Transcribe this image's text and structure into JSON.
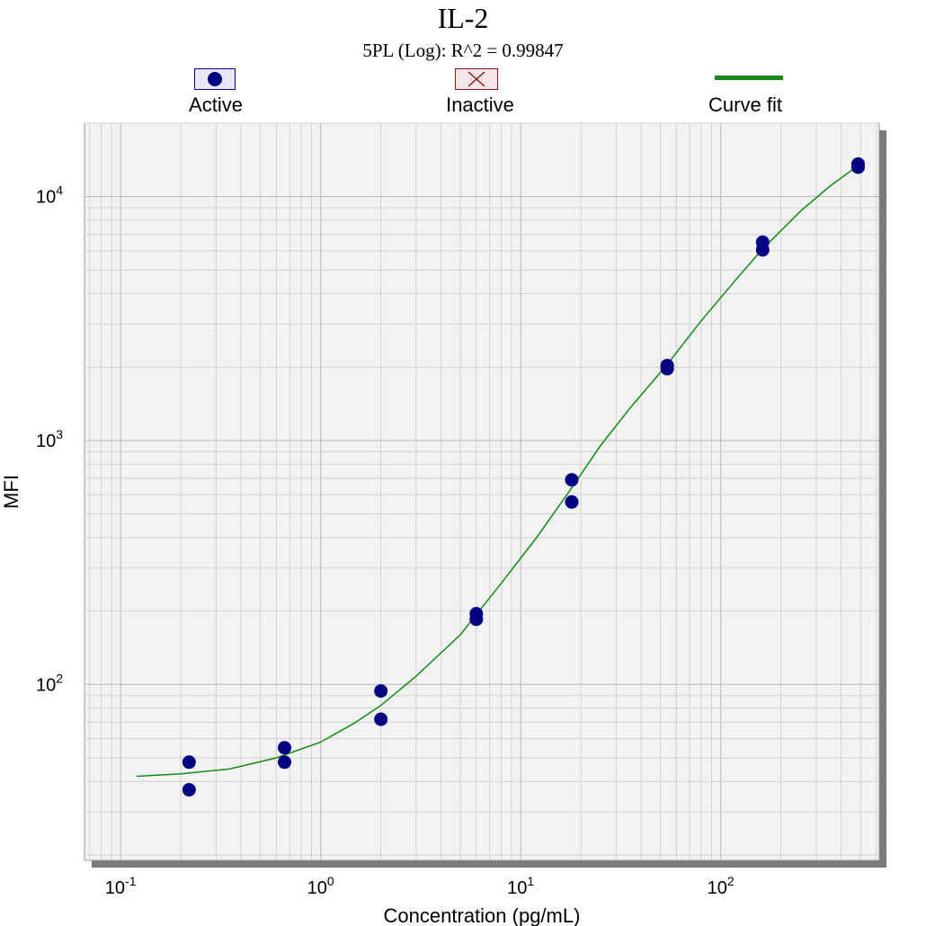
{
  "chart_data": {
    "type": "scatter",
    "title": "IL-2",
    "subtitle": "5PL (Log): R^2 = 0.99847",
    "xlabel": "Concentration (pg/mL)",
    "ylabel": "MFI",
    "x_scale": "log",
    "y_scale": "log",
    "xlim": [
      0.066,
      620
    ],
    "ylim": [
      19,
      20000
    ],
    "grid": true,
    "x_ticks": [
      {
        "value": 0.1,
        "label": "10",
        "exp": "-1"
      },
      {
        "value": 1,
        "label": "10",
        "exp": "0"
      },
      {
        "value": 10,
        "label": "10",
        "exp": "1"
      },
      {
        "value": 100,
        "label": "10",
        "exp": "2"
      }
    ],
    "y_ticks": [
      {
        "value": 100,
        "label": "10",
        "exp": "2"
      },
      {
        "value": 1000,
        "label": "10",
        "exp": "3"
      },
      {
        "value": 10000,
        "label": "10",
        "exp": "4"
      }
    ],
    "legend": {
      "placement": "top",
      "items": [
        {
          "name": "Active",
          "symbol": "filled-circle",
          "color": "#000080"
        },
        {
          "name": "Inactive",
          "symbol": "x-box",
          "color": "#8b1a1a"
        },
        {
          "name": "Curve fit",
          "symbol": "line",
          "color": "#138a13"
        }
      ]
    },
    "series": [
      {
        "name": "Active",
        "color": "#000080",
        "points": [
          {
            "x": 0.22,
            "y": 48
          },
          {
            "x": 0.22,
            "y": 37
          },
          {
            "x": 0.66,
            "y": 55
          },
          {
            "x": 0.66,
            "y": 48
          },
          {
            "x": 2.0,
            "y": 94
          },
          {
            "x": 2.0,
            "y": 72
          },
          {
            "x": 6.0,
            "y": 195
          },
          {
            "x": 6.0,
            "y": 185
          },
          {
            "x": 18.0,
            "y": 690
          },
          {
            "x": 18.0,
            "y": 560
          },
          {
            "x": 54.0,
            "y": 2030
          },
          {
            "x": 54.0,
            "y": 1970
          },
          {
            "x": 162.0,
            "y": 6500
          },
          {
            "x": 162.0,
            "y": 6050
          },
          {
            "x": 486.0,
            "y": 13600
          },
          {
            "x": 486.0,
            "y": 13200
          }
        ]
      },
      {
        "name": "Curve fit",
        "color": "#138a13",
        "points": [
          {
            "x": 0.12,
            "y": 42
          },
          {
            "x": 0.2,
            "y": 43
          },
          {
            "x": 0.35,
            "y": 45
          },
          {
            "x": 0.6,
            "y": 50
          },
          {
            "x": 1.0,
            "y": 58
          },
          {
            "x": 1.5,
            "y": 70
          },
          {
            "x": 2.0,
            "y": 82
          },
          {
            "x": 3.0,
            "y": 108
          },
          {
            "x": 5.0,
            "y": 160
          },
          {
            "x": 8.0,
            "y": 260
          },
          {
            "x": 12.0,
            "y": 400
          },
          {
            "x": 18.0,
            "y": 640
          },
          {
            "x": 25.0,
            "y": 950
          },
          {
            "x": 35.0,
            "y": 1350
          },
          {
            "x": 54.0,
            "y": 2050
          },
          {
            "x": 80.0,
            "y": 3100
          },
          {
            "x": 120.0,
            "y": 4600
          },
          {
            "x": 162.0,
            "y": 6100
          },
          {
            "x": 250.0,
            "y": 8700
          },
          {
            "x": 350.0,
            "y": 11000
          },
          {
            "x": 486.0,
            "y": 13400
          }
        ]
      }
    ]
  }
}
